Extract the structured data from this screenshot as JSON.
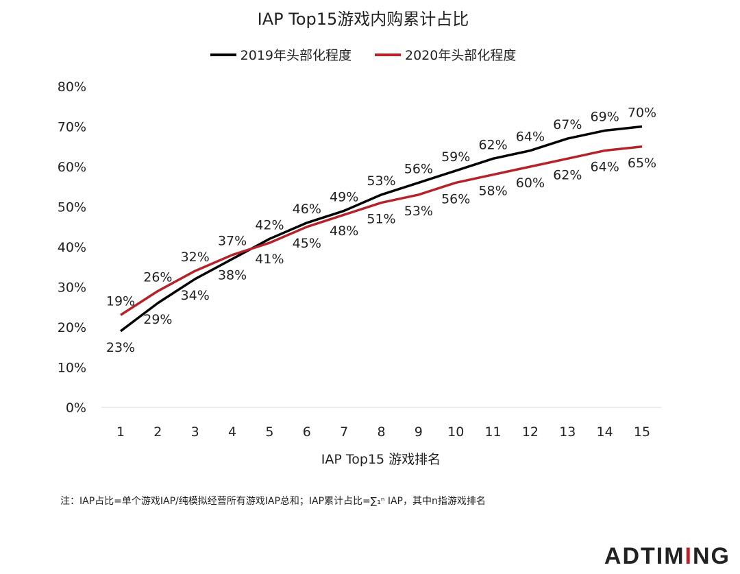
{
  "chart_data": {
    "type": "line",
    "title": "IAP Top15游戏内购累计占比",
    "xlabel": "IAP Top15 游戏排名",
    "ylabel": "",
    "categories": [
      "1",
      "2",
      "3",
      "4",
      "5",
      "6",
      "7",
      "8",
      "9",
      "10",
      "11",
      "12",
      "13",
      "14",
      "15"
    ],
    "ylim": [
      0,
      80
    ],
    "yticks": [
      "0%",
      "10%",
      "20%",
      "30%",
      "40%",
      "50%",
      "60%",
      "70%",
      "80%"
    ],
    "grid": false,
    "legend_position": "top",
    "series": [
      {
        "name": "2019年头部化程度",
        "color": "#000000",
        "values": [
          19,
          26,
          32,
          37,
          42,
          46,
          49,
          53,
          56,
          59,
          62,
          64,
          67,
          69,
          70
        ]
      },
      {
        "name": "2020年头部化程度",
        "color": "#b5222a",
        "values": [
          23,
          29,
          34,
          38,
          41,
          45,
          48,
          51,
          53,
          56,
          58,
          60,
          62,
          64,
          65
        ]
      }
    ]
  },
  "note": "注：IAP占比=单个游戏IAP/纯模拟经营所有游戏IAP总和；IAP累计占比=∑₁ⁿ IAP，其中n指游戏排名",
  "logo": {
    "text": "ADTIMING"
  }
}
